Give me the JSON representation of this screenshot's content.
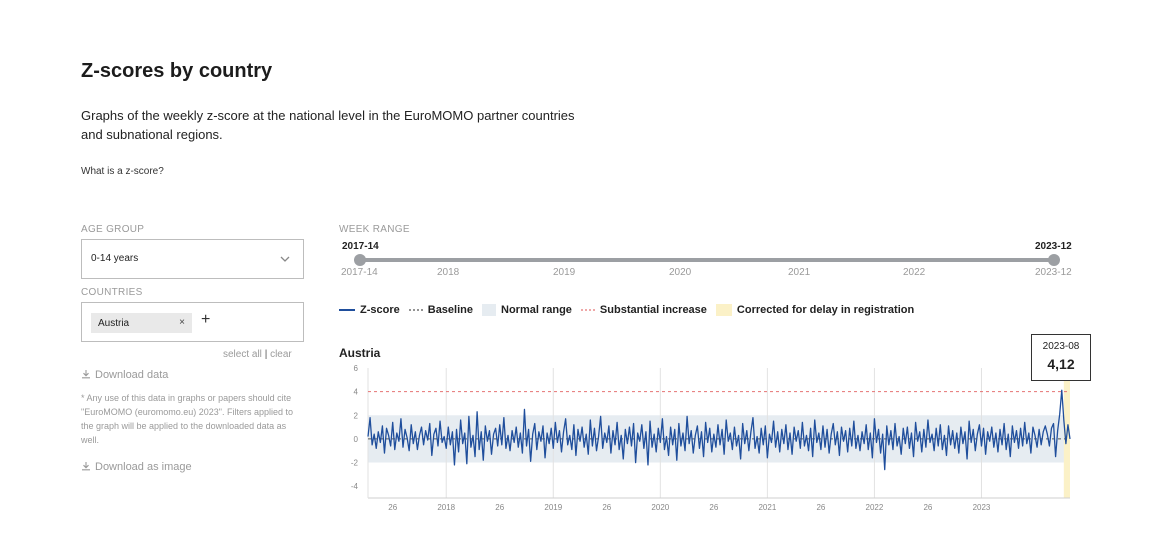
{
  "header": {
    "title": "Z-scores by country",
    "description": "Graphs of the weekly z-score at the national level in the EuroMOMO partner countries and subnational regions.",
    "zscore_link": "What is a z-score?"
  },
  "filters": {
    "age_group_label": "AGE GROUP",
    "age_group_value": "0-14 years",
    "countries_label": "COUNTRIES",
    "selected_country": "Austria",
    "chip_remove": "×",
    "add_symbol": "+",
    "select_all": "select all",
    "separator": "|",
    "clear": "clear"
  },
  "downloads": {
    "data_label": "Download data",
    "note": "* Any use of this data in graphs or papers should cite \"EuroMOMO (euromomo.eu) 2023\". Filters applied to the graph will be applied to the downloaded data as well.",
    "image_label": "Download as image"
  },
  "week_range": {
    "label": "WEEK RANGE",
    "start": "2017-14",
    "end": "2023-12",
    "ticks": [
      "2017-14",
      "2018",
      "2019",
      "2020",
      "2021",
      "2022",
      "2023-12"
    ]
  },
  "legend": {
    "zscore": "Z-score",
    "baseline": "Baseline",
    "normal_range": "Normal range",
    "substantial_increase": "Substantial increase",
    "corrected": "Corrected for delay in registration"
  },
  "colors": {
    "zscore": "#1f4e9c",
    "baseline": "#555555",
    "normal_range": "#e6ecf1",
    "substantial_increase": "#e57373",
    "corrected": "#fbf1c7",
    "slider": "#9c9fa3"
  },
  "tooltip": {
    "week": "2023-08",
    "value": "4,12"
  },
  "chart_data": {
    "type": "line",
    "title": "Austria",
    "xlabel": "",
    "ylabel": "",
    "x_start_week": "2017-14",
    "x_end_week": "2023-12",
    "x_tick_labels": [
      "26",
      "2018",
      "26",
      "2019",
      "26",
      "2020",
      "26",
      "2021",
      "26",
      "2022",
      "26",
      "2023"
    ],
    "ylim": [
      -5,
      6
    ],
    "y_ticks": [
      6,
      4,
      2,
      0,
      -2,
      -4
    ],
    "baseline": 0,
    "normal_range": [
      -2,
      2
    ],
    "substantial_increase": 4,
    "grid": true,
    "series": [
      {
        "name": "Z-score",
        "values": [
          0.2,
          1.8,
          -0.5,
          0.4,
          -0.8,
          0.6,
          -0.3,
          1.1,
          -1.2,
          0.9,
          0.3,
          -0.6,
          1.4,
          -0.9,
          0.5,
          -0.2,
          1.7,
          -0.7,
          0.8,
          0.1,
          -1.0,
          1.2,
          -0.4,
          0.6,
          -0.9,
          0.3,
          1.0,
          -0.5,
          0.7,
          -0.1,
          1.3,
          -1.4,
          0.4,
          0.9,
          -0.6,
          1.5,
          -0.3,
          0.2,
          -0.8,
          1.0,
          -0.5,
          0.6,
          -2.2,
          0.8,
          -1.1,
          1.6,
          -0.4,
          0.5,
          -2.1,
          1.9,
          -0.7,
          0.3,
          -1.5,
          2.3,
          -0.9,
          0.6,
          -1.8,
          1.1,
          -0.2,
          0.7,
          -1.3,
          0.4,
          0.9,
          -0.6,
          1.2,
          -0.5,
          1.8,
          -0.8,
          0.3,
          -1.0,
          0.7,
          -0.3,
          1.0,
          -0.7,
          0.5,
          -1.2,
          2.5,
          -0.6,
          0.8,
          -1.9,
          0.4,
          1.3,
          -0.9,
          0.6,
          -0.2,
          1.1,
          -1.6,
          0.5,
          -0.4,
          0.9,
          -0.8,
          1.4,
          -0.3,
          0.7,
          -1.1,
          0.6,
          1.7,
          -0.5,
          0.3,
          -0.9,
          1.2,
          -1.4,
          0.8,
          -0.2,
          1.0,
          -0.7,
          0.4,
          -1.3,
          1.6,
          -0.6,
          0.9,
          -1.0,
          0.2,
          1.9,
          -0.8,
          0.5,
          -0.3,
          1.1,
          -1.2,
          0.7,
          -0.5,
          1.4,
          -0.9,
          0.3,
          -1.7,
          0.8,
          -0.4,
          1.0,
          -0.6,
          1.3,
          -2.0,
          0.5,
          -0.2,
          1.2,
          -0.8,
          0.6,
          -2.2,
          1.5,
          -0.7,
          0.4,
          -1.1,
          0.9,
          -0.3,
          1.7,
          -0.9,
          0.2,
          -1.4,
          1.0,
          -0.5,
          0.8,
          -1.8,
          1.3,
          -0.6,
          0.5,
          -1.0,
          1.9,
          -0.4,
          0.7,
          -1.2,
          0.3,
          1.1,
          -0.8,
          0.6,
          -1.5,
          1.4,
          -0.3,
          0.9,
          -1.1,
          0.4,
          -0.7,
          1.2,
          -0.5,
          0.8,
          -1.3,
          1.6,
          -0.2,
          0.5,
          -0.9,
          1.0,
          -0.6,
          0.3,
          -1.7,
          1.3,
          -0.4,
          0.7,
          -1.0,
          0.6,
          1.8,
          -0.8,
          0.2,
          -1.2,
          0.9,
          -0.5,
          1.1,
          -1.6,
          0.4,
          -0.3,
          1.5,
          -0.7,
          0.6,
          -1.1,
          0.8,
          -0.4,
          1.2,
          -0.9,
          0.5,
          -1.3,
          1.0,
          -0.2,
          0.7,
          -0.8,
          1.4,
          -0.6,
          0.3,
          -1.0,
          0.9,
          -1.5,
          1.6,
          -0.3,
          0.5,
          -0.9,
          1.1,
          -0.7,
          0.8,
          -1.2,
          0.4,
          1.3,
          -0.5,
          0.6,
          -1.4,
          1.0,
          -0.2,
          0.7,
          -1.1,
          0.9,
          -0.6,
          1.5,
          -0.8,
          0.3,
          -1.0,
          0.6,
          -0.4,
          1.2,
          -0.9,
          0.5,
          -1.6,
          1.7,
          -0.3,
          0.8,
          -1.2,
          0.4,
          -2.6,
          1.1,
          -0.5,
          0.7,
          -0.9,
          1.3,
          -0.6,
          0.2,
          -1.3,
          0.9,
          -0.4,
          1.0,
          -0.8,
          0.5,
          -1.5,
          1.4,
          -0.2,
          0.6,
          -1.1,
          0.8,
          -0.7,
          1.6,
          -0.3,
          0.4,
          -1.0,
          0.9,
          -0.6,
          1.2,
          -0.9,
          0.3,
          -1.4,
          1.1,
          -0.5,
          0.7,
          -0.8,
          0.5,
          -1.2,
          1.0,
          -0.4,
          0.6,
          -1.7,
          1.5,
          -0.3,
          0.8,
          -1.0,
          0.4,
          1.2,
          -0.6,
          0.9,
          -1.3,
          0.6,
          -0.2,
          1.0,
          -0.7,
          0.5,
          -1.1,
          0.8,
          -0.5,
          1.3,
          -0.9,
          0.4,
          -1.5,
          1.1,
          -0.3,
          0.7,
          -0.8,
          0.9,
          -0.6,
          1.4,
          -0.4,
          0.5,
          -1.2,
          1.0,
          0.3,
          -0.7,
          0.8,
          -0.5,
          0.6,
          1.1,
          0.4,
          -0.6,
          0.9,
          1.3,
          -1.5,
          0.7,
          2.1,
          4.12,
          1.6,
          -0.4,
          1.2,
          0.0
        ]
      }
    ],
    "corrected_weeks_at_end": 3
  }
}
